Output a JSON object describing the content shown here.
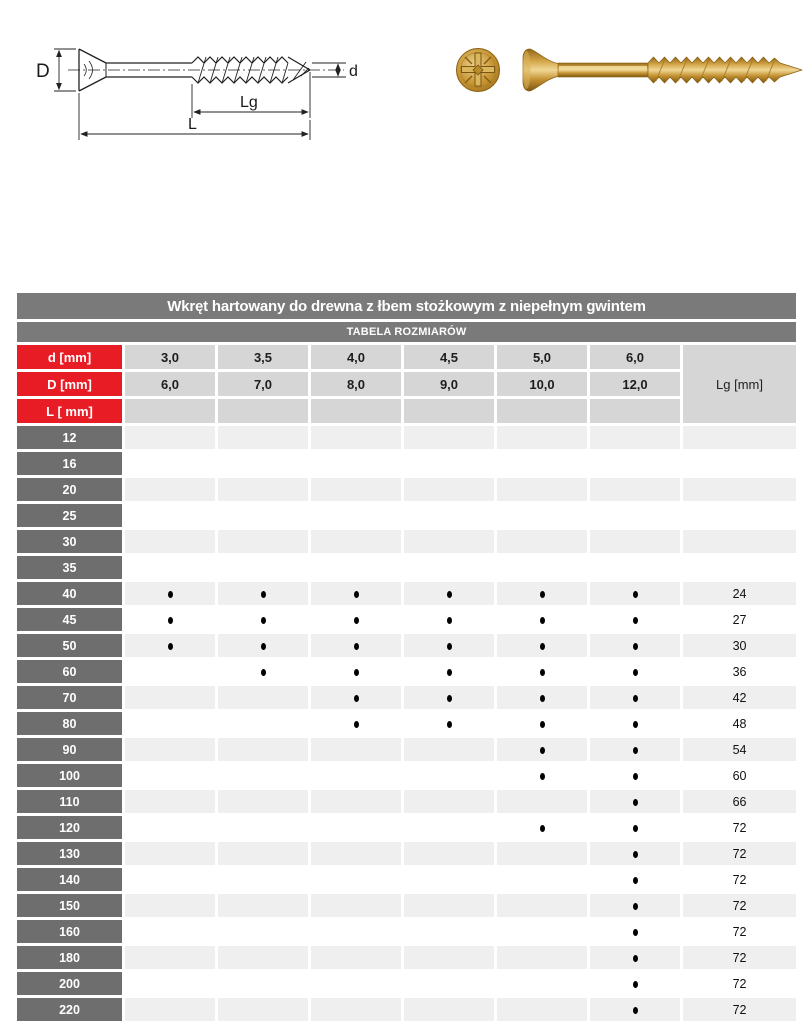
{
  "diagram": {
    "labels": {
      "D": "D",
      "d": "d",
      "Lg": "Lg",
      "L": "L"
    }
  },
  "product_table": {
    "title": "Wkręt hartowany do drewna z łbem stożkowym z niepełnym gwintem",
    "subtitle": "TABELA ROZMIARÓW",
    "header": {
      "d_label": "d [mm]",
      "D_label": "D [mm]",
      "L_label": "L [ mm]",
      "lg_label": "Lg [mm]",
      "d_values": [
        "3,0",
        "3,5",
        "4,0",
        "4,5",
        "5,0",
        "6,0"
      ],
      "D_values": [
        "6,0",
        "7,0",
        "8,0",
        "9,0",
        "10,0",
        "12,0"
      ]
    },
    "rows": [
      {
        "L": "12",
        "dots": [
          0,
          0,
          0,
          0,
          0,
          0
        ],
        "lg": ""
      },
      {
        "L": "16",
        "dots": [
          0,
          0,
          0,
          0,
          0,
          0
        ],
        "lg": ""
      },
      {
        "L": "20",
        "dots": [
          0,
          0,
          0,
          0,
          0,
          0
        ],
        "lg": ""
      },
      {
        "L": "25",
        "dots": [
          0,
          0,
          0,
          0,
          0,
          0
        ],
        "lg": ""
      },
      {
        "L": "30",
        "dots": [
          0,
          0,
          0,
          0,
          0,
          0
        ],
        "lg": ""
      },
      {
        "L": "35",
        "dots": [
          0,
          0,
          0,
          0,
          0,
          0
        ],
        "lg": ""
      },
      {
        "L": "40",
        "dots": [
          1,
          1,
          1,
          1,
          1,
          1
        ],
        "lg": "24"
      },
      {
        "L": "45",
        "dots": [
          1,
          1,
          1,
          1,
          1,
          1
        ],
        "lg": "27"
      },
      {
        "L": "50",
        "dots": [
          1,
          1,
          1,
          1,
          1,
          1
        ],
        "lg": "30"
      },
      {
        "L": "60",
        "dots": [
          0,
          1,
          1,
          1,
          1,
          1
        ],
        "lg": "36"
      },
      {
        "L": "70",
        "dots": [
          0,
          0,
          1,
          1,
          1,
          1
        ],
        "lg": "42"
      },
      {
        "L": "80",
        "dots": [
          0,
          0,
          1,
          1,
          1,
          1
        ],
        "lg": "48"
      },
      {
        "L": "90",
        "dots": [
          0,
          0,
          0,
          0,
          1,
          1
        ],
        "lg": "54"
      },
      {
        "L": "100",
        "dots": [
          0,
          0,
          0,
          0,
          1,
          1
        ],
        "lg": "60"
      },
      {
        "L": "110",
        "dots": [
          0,
          0,
          0,
          0,
          0,
          1
        ],
        "lg": "66"
      },
      {
        "L": "120",
        "dots": [
          0,
          0,
          0,
          0,
          1,
          1
        ],
        "lg": "72"
      },
      {
        "L": "130",
        "dots": [
          0,
          0,
          0,
          0,
          0,
          1
        ],
        "lg": "72"
      },
      {
        "L": "140",
        "dots": [
          0,
          0,
          0,
          0,
          0,
          1
        ],
        "lg": "72"
      },
      {
        "L": "150",
        "dots": [
          0,
          0,
          0,
          0,
          0,
          1
        ],
        "lg": "72"
      },
      {
        "L": "160",
        "dots": [
          0,
          0,
          0,
          0,
          0,
          1
        ],
        "lg": "72"
      },
      {
        "L": "180",
        "dots": [
          0,
          0,
          0,
          0,
          0,
          1
        ],
        "lg": "72"
      },
      {
        "L": "200",
        "dots": [
          0,
          0,
          0,
          0,
          0,
          1
        ],
        "lg": "72"
      },
      {
        "L": "220",
        "dots": [
          0,
          0,
          0,
          0,
          0,
          1
        ],
        "lg": "72"
      }
    ]
  },
  "colors": {
    "header_red": "#e81c24",
    "bar_gray": "#7a7a7a",
    "row_header_gray": "#6e6e6e",
    "cell_gray": "#d6d6d6",
    "row_shade": "#efefef",
    "dot_black": "#000000",
    "screw_gold": "#c9973a"
  }
}
